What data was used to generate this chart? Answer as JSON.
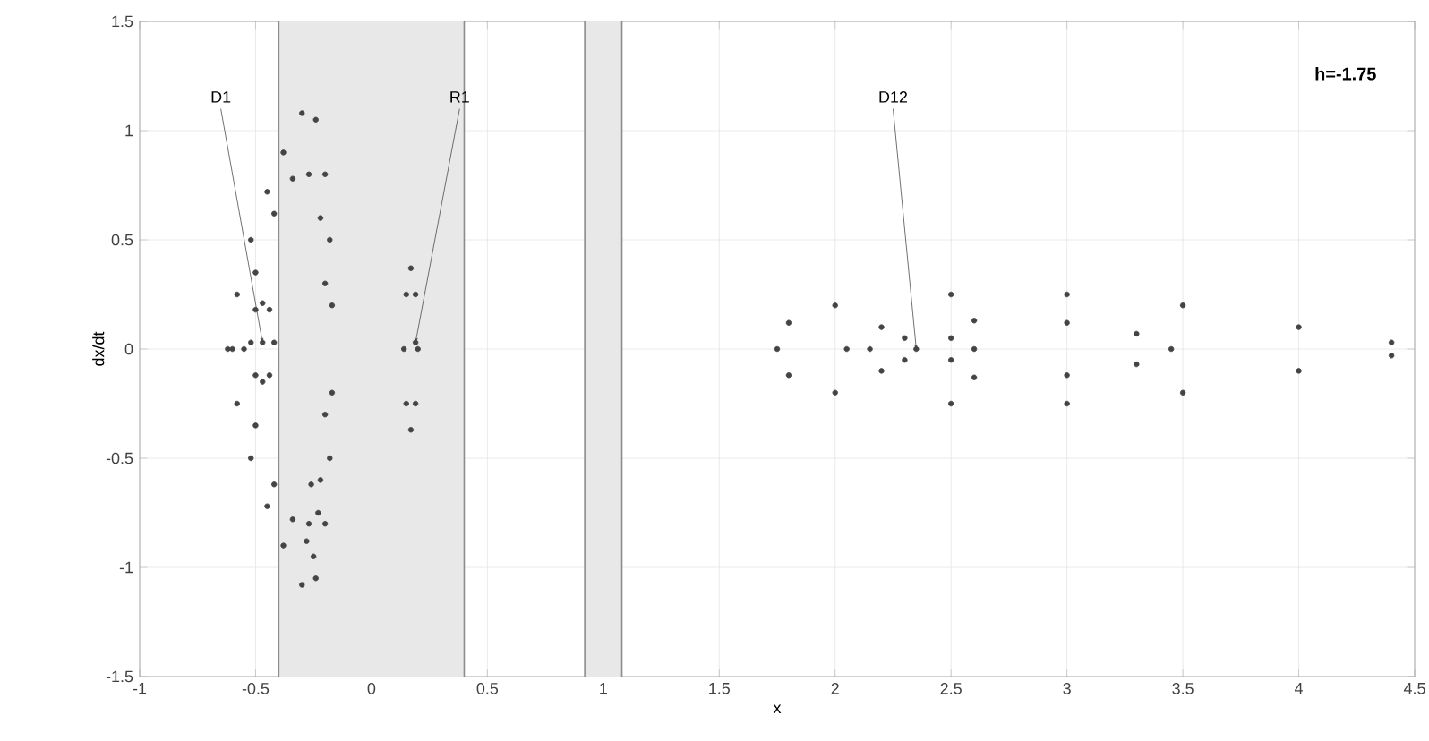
{
  "chart_data": {
    "type": "scatter",
    "xlabel": "x",
    "ylabel": "dx/dt",
    "xlim": [
      -1,
      4.5
    ],
    "ylim": [
      -1.5,
      1.5
    ],
    "xticks": [
      -1,
      -0.5,
      0,
      0.5,
      1,
      1.5,
      2,
      2.5,
      3,
      3.5,
      4,
      4.5
    ],
    "yticks": [
      -1.5,
      -1,
      -0.5,
      0,
      0.5,
      1,
      1.5
    ],
    "grid": true,
    "series": [
      {
        "color": "#444444",
        "x": [
          -0.62,
          -0.58,
          -0.52,
          -0.45,
          -0.38,
          -0.3,
          -0.24,
          -0.2,
          -0.18,
          -0.17,
          -0.17,
          -0.18,
          -0.2,
          -0.24,
          -0.3,
          -0.38,
          -0.45,
          -0.52,
          -0.58,
          -0.55,
          -0.5,
          -0.42,
          -0.34,
          -0.27,
          -0.22,
          -0.2,
          -0.2,
          -0.22,
          -0.27,
          -0.34,
          -0.42,
          -0.5,
          -0.26,
          -0.23,
          -0.25,
          -0.28,
          -0.52,
          -0.5,
          -0.47,
          -0.44,
          -0.42,
          -0.44,
          -0.47,
          -0.5,
          -0.47,
          -0.6,
          0.17,
          0.19,
          0.2,
          0.19,
          0.17,
          0.15,
          0.14,
          0.15,
          0.19,
          1.75,
          1.8,
          2,
          2.5,
          3,
          3.5,
          4,
          4.4,
          4.4,
          4,
          3.5,
          3,
          2.5,
          2,
          1.8,
          2.05,
          2.2,
          2.6,
          3,
          3.3,
          3.45,
          3.3,
          3,
          2.6,
          2.2,
          2.15,
          2.3,
          2.5,
          2.6,
          2.5,
          2.3,
          2.35
        ],
        "values": [
          0,
          0.25,
          0.5,
          0.72,
          0.9,
          1.08,
          1.05,
          0.8,
          0.5,
          0.2,
          -0.2,
          -0.5,
          -0.8,
          -1.05,
          -1.08,
          -0.9,
          -0.72,
          -0.5,
          -0.25,
          0,
          0.35,
          0.62,
          0.78,
          0.8,
          0.6,
          0.3,
          -0.3,
          -0.6,
          -0.8,
          -0.78,
          -0.62,
          -0.35,
          -0.62,
          -0.75,
          -0.95,
          -0.88,
          0.03,
          0.18,
          0.21,
          0.18,
          0.03,
          -0.12,
          -0.15,
          -0.12,
          0.03,
          0,
          0.37,
          0.25,
          0,
          -0.25,
          -0.37,
          -0.25,
          0,
          0.25,
          0.03,
          0,
          0.12,
          0.2,
          0.25,
          0.25,
          0.2,
          0.1,
          0.03,
          -0.03,
          -0.1,
          -0.2,
          -0.25,
          -0.25,
          -0.2,
          -0.12,
          0,
          0.1,
          0.13,
          0.12,
          0.07,
          0,
          -0.07,
          -0.12,
          -0.13,
          -0.1,
          0,
          0.05,
          0.05,
          0,
          -0.05,
          -0.05,
          0
        ]
      }
    ],
    "bands": [
      {
        "axis": "x",
        "from": -0.4,
        "to": 0.4,
        "color": "#e8e8e8"
      },
      {
        "axis": "x",
        "from": 0.92,
        "to": 1.08,
        "color": "#e8e8e8"
      }
    ],
    "annotations": [
      {
        "text": "D1",
        "x": -0.47,
        "y": 0.03
      },
      {
        "text": "R1",
        "x": 0.19,
        "y": 0.03
      },
      {
        "text": "D12",
        "x": 2.35,
        "y": 0
      },
      "h=-1.75"
    ]
  }
}
